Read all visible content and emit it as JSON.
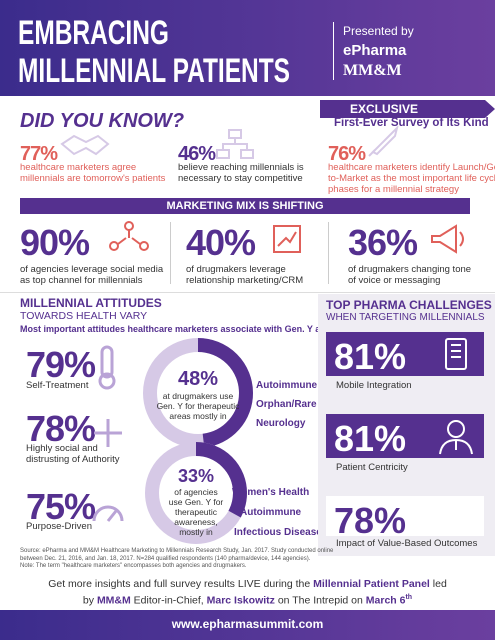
{
  "header": {
    "title_lines": [
      "EMBRACING",
      "MILLENNIAL PATIENTS"
    ],
    "presented_by": "Presented by",
    "sponsors": [
      "ePharma",
      "MM&M"
    ]
  },
  "did_you_know": {
    "title": "DID YOU KNOW?",
    "exclusive": "EXCLUSIVE",
    "exclusive_sub": "First-Ever Survey of Its Kind",
    "stats": [
      {
        "value": "77%",
        "lines": [
          "healthcare marketers agree",
          "millennials are tomorrow's patients"
        ]
      },
      {
        "value": "46%",
        "lines": [
          "believe reaching millennials is",
          "necessary to stay competitive"
        ]
      },
      {
        "value": "76%",
        "lines": [
          "healthcare marketers identify Launch/Go-",
          "to-Market as the most important life cycle",
          "phases for a millennial strategy"
        ]
      }
    ]
  },
  "marketing_mix": {
    "title": "MARKETING MIX IS SHIFTING",
    "stats": [
      {
        "value": "90%",
        "lines": [
          "of agencies leverage social media",
          "as top channel for millennials"
        ]
      },
      {
        "value": "40%",
        "lines": [
          "of drugmakers leverage",
          "relationship marketing/CRM"
        ]
      },
      {
        "value": "36%",
        "lines": [
          "of drugmakers changing tone",
          "of voice or messaging"
        ]
      }
    ]
  },
  "attitudes": {
    "title": "MILLENNIAL ATTITUDES",
    "subtitle": "TOWARDS HEALTH VARY",
    "intro": "Most important attitudes healthcare marketers associate with Gen. Y are:",
    "items": [
      {
        "value": "79%",
        "lines": [
          "Self-Treatment"
        ]
      },
      {
        "value": "78%",
        "lines": [
          "Highly social and",
          "distrusting of Authority"
        ]
      },
      {
        "value": "75%",
        "lines": [
          "Purpose-Driven"
        ]
      }
    ],
    "donuts": [
      {
        "value": "48%",
        "lines": [
          "at drugmakers use",
          "Gen. Y for therapeutic",
          "areas mostly in"
        ],
        "areas": [
          "Autoimmune",
          "Orphan/Rare Disease",
          "Neurology"
        ]
      },
      {
        "value": "33%",
        "lines": [
          "of agencies",
          "use Gen. Y for",
          "therapeutic",
          "awareness,",
          "mostly in"
        ],
        "areas": [
          "Women's Health",
          "Autoimmune",
          "Infectious Disease"
        ]
      }
    ]
  },
  "challenges": {
    "title": "TOP PHARMA CHALLENGES",
    "subtitle": "WHEN TARGETING MILLENNIALS",
    "items": [
      {
        "value": "81%",
        "label": "Mobile Integration"
      },
      {
        "value": "81%",
        "label": "Patient Centricity"
      },
      {
        "value": "78%",
        "label": "Impact of Value-Based Outcomes"
      }
    ]
  },
  "source": [
    "Source: ePharma and MM&M Healthcare Marketing to Millennials Research Study, Jan. 2017. Study conducted online",
    "between Dec. 21, 2016, and Jan. 18, 2017. N=284 qualified respondents (140 pharma/device, 144 agencies).",
    "Note: The term \"healthcare marketers\" encompasses both agencies and drugmakers."
  ],
  "footer": {
    "lines": [
      [
        {
          "text": "Get more insights and full survey results LIVE during the "
        },
        {
          "text": "Millennial Patient Panel",
          "bold": true
        },
        {
          "text": " led"
        }
      ],
      [
        {
          "text": "by "
        },
        {
          "text": "MM&M",
          "bold": true
        },
        {
          "text": " Editor-in-Chief, "
        },
        {
          "text": "Marc Iskowitz",
          "bold": true
        },
        {
          "text": " on The Intrepid on "
        },
        {
          "text": "March 6",
          "bold": true
        },
        {
          "text": "th",
          "bold": true,
          "sup": true
        }
      ]
    ],
    "url": "www.epharmasummit.com"
  }
}
